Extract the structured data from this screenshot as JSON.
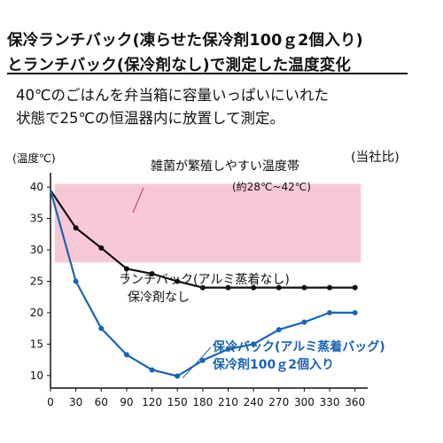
{
  "header": {
    "title_line1": "保冷ランチバック(凍らせた保冷剤100ｇ2個入り)",
    "title_line2": "とランチバック(保冷剤なし)で測定した温度変化",
    "desc_line1": "40℃のごはんを弁当箱に容量いっぱいにいれた",
    "desc_line2": "状態で25℃の恒温器内に放置して測定。"
  },
  "colors": {
    "band": "#f7c9d6",
    "series_black": "#111111",
    "series_blue": "#1a64b4"
  },
  "chart_data": {
    "type": "line",
    "ylabel": "(温度℃)",
    "source_note": "(当社比)",
    "x_ticks": [
      0,
      30,
      60,
      90,
      120,
      150,
      180,
      210,
      240,
      270,
      300,
      330,
      360
    ],
    "y_ticks": [
      10,
      15,
      20,
      25,
      30,
      35,
      40
    ],
    "xlim": [
      0,
      375
    ],
    "ylim": [
      8,
      42
    ],
    "band": {
      "y_range": [
        28,
        40.5
      ],
      "label": "雑菌が繁殖しやすい温度帯",
      "sublabel": "(約28℃~42℃)"
    },
    "series": [
      {
        "name_line1": "ランチバック(アルミ蒸着なし)",
        "name_line2": "保冷剤なし",
        "color": "#111111",
        "x": [
          0,
          30,
          60,
          90,
          120,
          150,
          180,
          210,
          240,
          270,
          300,
          330,
          360
        ],
        "y": [
          39.5,
          33.5,
          30.3,
          27.0,
          26.2,
          25.0,
          24.0,
          24.0,
          24.0,
          24.0,
          24.0,
          24.0,
          24.0
        ]
      },
      {
        "name_line1": "保冷バック(アルミ蒸着バッグ)",
        "name_line2": "保冷剤100ｇ2個入り",
        "color": "#1a64b4",
        "x": [
          0,
          30,
          60,
          90,
          120,
          150,
          180,
          210,
          240,
          270,
          300,
          330,
          360
        ],
        "y": [
          39.5,
          25.0,
          17.5,
          13.3,
          10.9,
          9.9,
          12.4,
          14.2,
          15.0,
          17.3,
          18.5,
          20.0,
          20.0
        ]
      }
    ]
  }
}
